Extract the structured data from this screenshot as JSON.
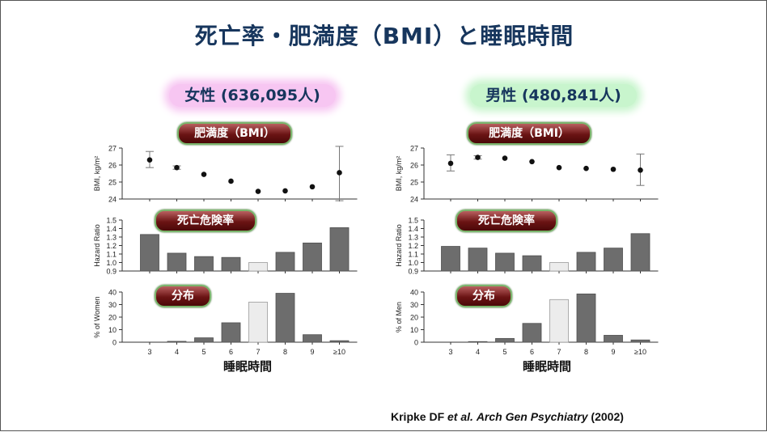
{
  "title": "死亡率・肥満度（BMI）と睡眠時間",
  "panels": [
    {
      "id": "left",
      "header": "女性 (636,095人)"
    },
    {
      "id": "right",
      "header": "男性 (480,841人)"
    }
  ],
  "pills": {
    "bmi": "肥満度（BMI）",
    "hazard": "死亡危険率",
    "dist": "分布"
  },
  "citation": {
    "authors": "Kripke DF ",
    "etal": "et al.",
    "journal": "Arch Gen Psychiatry",
    "year": " (2002)"
  },
  "colors": {
    "bar": "#6d6d6d",
    "bar_ref": "#ececec",
    "dot": "#111111",
    "title": "#17365d"
  },
  "chart_data": [
    {
      "panel": "女性",
      "type": "scatter",
      "title": "肥満度（BMI）",
      "ylabel": "BMI, kg/m²",
      "ylim": [
        24,
        27
      ],
      "yticks": [
        24,
        25,
        26,
        27
      ],
      "categories": [
        "3",
        "4",
        "5",
        "6",
        "7",
        "8",
        "9",
        "≥10"
      ],
      "values": [
        26.3,
        25.85,
        25.45,
        25.05,
        24.45,
        24.48,
        24.72,
        25.55
      ],
      "error_low": [
        25.85,
        25.75,
        null,
        null,
        null,
        null,
        null,
        23.9
      ],
      "error_high": [
        26.8,
        25.95,
        null,
        null,
        null,
        null,
        null,
        27.1
      ]
    },
    {
      "panel": "女性",
      "type": "bar",
      "title": "死亡危険率",
      "ylabel": "Hazard Ratio",
      "ylim": [
        0.9,
        1.5
      ],
      "yticks": [
        "0.9",
        "1.0",
        "1.1",
        "1.2",
        "1.3",
        "1.4",
        "1.5"
      ],
      "categories": [
        "3",
        "4",
        "5",
        "6",
        "7",
        "8",
        "9",
        "≥10"
      ],
      "values": [
        1.33,
        1.11,
        1.07,
        1.06,
        1.0,
        1.12,
        1.23,
        1.41
      ],
      "reference_index": 4
    },
    {
      "panel": "女性",
      "type": "bar",
      "title": "分布",
      "ylabel": "% of Women",
      "xlabel": "睡眠時間",
      "ylim": [
        0,
        40
      ],
      "yticks": [
        "0",
        "10",
        "20",
        "30",
        "40"
      ],
      "categories": [
        "3",
        "4",
        "5",
        "6",
        "7",
        "8",
        "9",
        "≥10"
      ],
      "values": [
        0,
        0.7,
        3.5,
        15.5,
        32,
        39,
        6,
        1.2
      ],
      "reference_index": 4
    },
    {
      "panel": "男性",
      "type": "scatter",
      "title": "肥満度（BMI）",
      "ylabel": "BMI, kg/m²",
      "ylim": [
        24,
        27
      ],
      "yticks": [
        24,
        25,
        26,
        27
      ],
      "categories": [
        "3",
        "4",
        "5",
        "6",
        "7",
        "8",
        "9",
        "≥10"
      ],
      "values": [
        26.1,
        26.45,
        26.4,
        26.2,
        25.85,
        25.8,
        25.75,
        25.7
      ],
      "error_low": [
        25.65,
        26.35,
        null,
        null,
        null,
        null,
        null,
        24.8
      ],
      "error_high": [
        26.6,
        26.55,
        null,
        null,
        null,
        null,
        null,
        26.65
      ]
    },
    {
      "panel": "男性",
      "type": "bar",
      "title": "死亡危険率",
      "ylabel": "Hazard Ratio",
      "ylim": [
        0.9,
        1.5
      ],
      "yticks": [
        "0.9",
        "1.0",
        "1.1",
        "1.2",
        "1.3",
        "1.4",
        "1.5"
      ],
      "categories": [
        "3",
        "4",
        "5",
        "6",
        "7",
        "8",
        "9",
        "≥10"
      ],
      "values": [
        1.19,
        1.17,
        1.11,
        1.08,
        1.0,
        1.12,
        1.17,
        1.34
      ],
      "reference_index": 4
    },
    {
      "panel": "男性",
      "type": "bar",
      "title": "分布",
      "ylabel": "% of Men",
      "xlabel": "睡眠時間",
      "ylim": [
        0,
        40
      ],
      "yticks": [
        "0",
        "10",
        "20",
        "30",
        "40"
      ],
      "categories": [
        "3",
        "4",
        "5",
        "6",
        "7",
        "8",
        "9",
        "≥10"
      ],
      "values": [
        0,
        0.5,
        3,
        15,
        34,
        38.5,
        5.5,
        1.8
      ],
      "reference_index": 4
    }
  ]
}
